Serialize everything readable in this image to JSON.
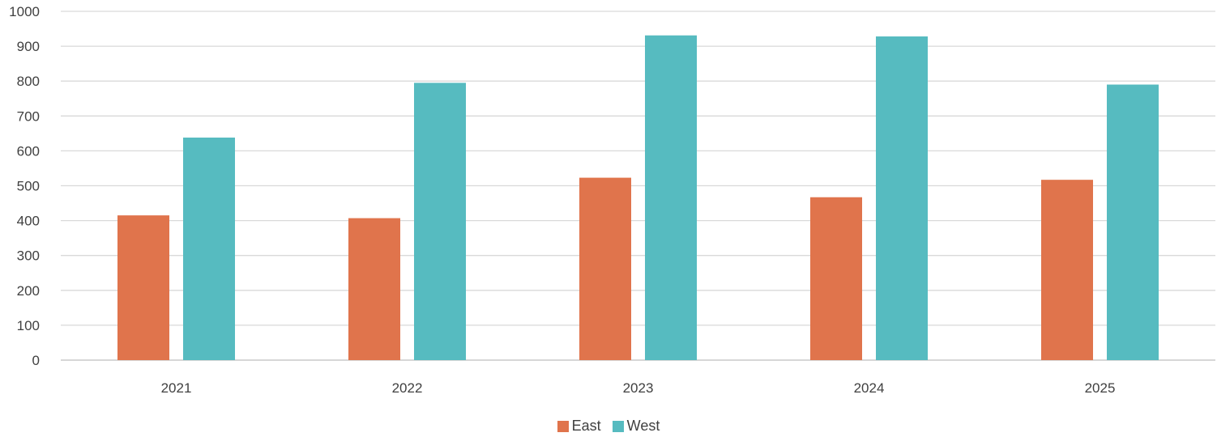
{
  "chart_data": {
    "type": "bar",
    "categories": [
      "2021",
      "2022",
      "2023",
      "2024",
      "2025"
    ],
    "series": [
      {
        "name": "East",
        "values": [
          415,
          407,
          523,
          467,
          517
        ],
        "color": "#E0744C"
      },
      {
        "name": "West",
        "values": [
          638,
          795,
          931,
          928,
          790
        ],
        "color": "#56BBC0"
      }
    ],
    "y_ticks": [
      "0",
      "100",
      "200",
      "300",
      "400",
      "500",
      "600",
      "700",
      "800",
      "900",
      "1000"
    ],
    "ylim": [
      0,
      1000
    ],
    "grid": true,
    "legend_position": "bottom",
    "gridline_color": "#D9D9D9",
    "axis_color": "#BFBFBF"
  }
}
